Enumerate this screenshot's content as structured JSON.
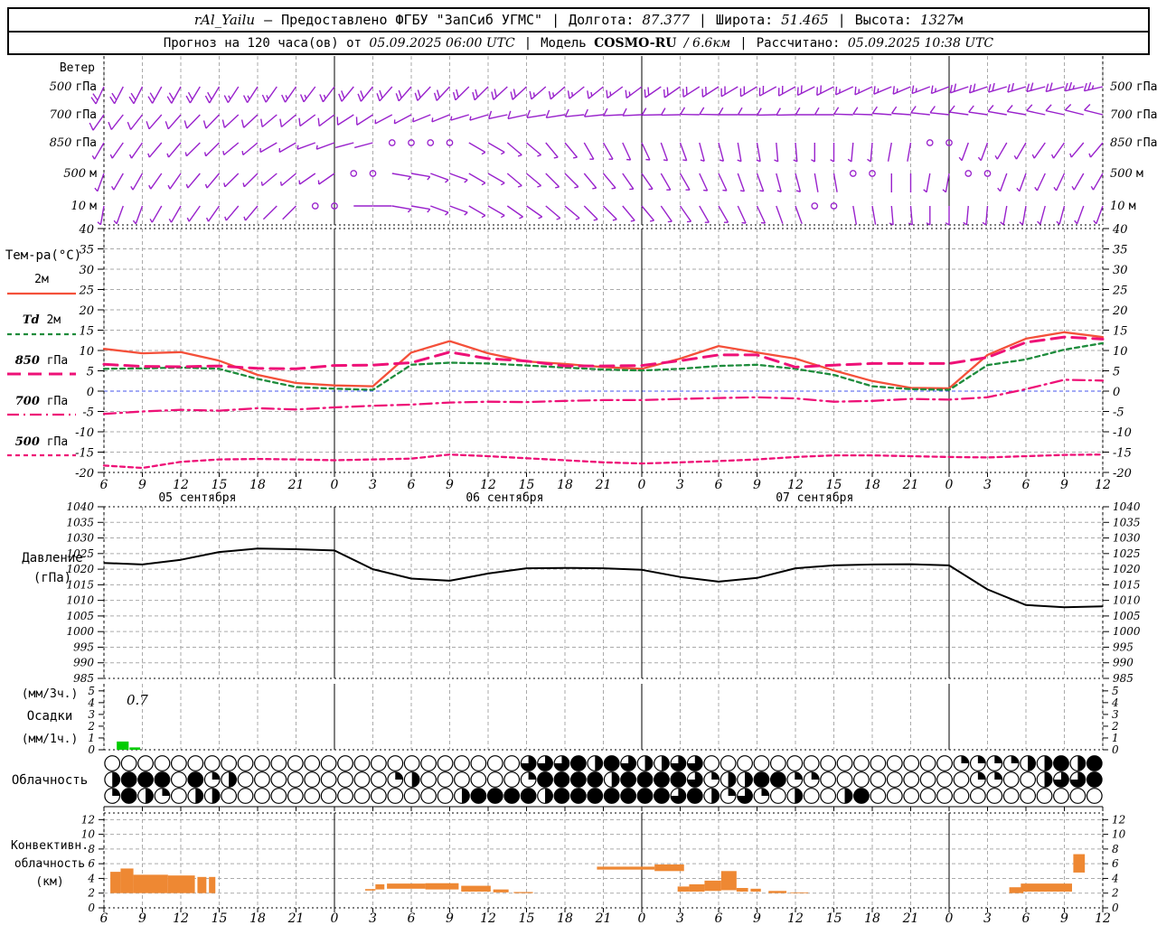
{
  "header": {
    "station": "rAl_Yailu",
    "dash": "—",
    "provider": "Предоставлено ФГБУ \"ЗапСиб УГМС\"",
    "lon_label": "Долгота:",
    "lon": "87.377",
    "lat_label": "Широта:",
    "lat": "51.465",
    "alt_label": "Высота:",
    "alt": "1327",
    "alt_unit": "м",
    "forecast_label": "Прогноз на 120 часа(ов) от",
    "run_time": "05.09.2025 06:00 UTC",
    "model_label": "Модель",
    "model": "COSMO-RU",
    "model_res": "/ 6.6км",
    "calc_label": "Рассчитано:",
    "calc_time": "05.09.2025 10:38 UTC",
    "sep": "|"
  },
  "axis": {
    "hour_labels": [
      "6",
      "9",
      "12",
      "15",
      "18",
      "21",
      "0",
      "3",
      "6",
      "9",
      "12",
      "15",
      "18",
      "21",
      "0",
      "3",
      "6",
      "9",
      "12",
      "15",
      "18",
      "21",
      "0",
      "3",
      "6",
      "9",
      "12"
    ],
    "day_tick_indices": [
      6,
      14,
      22
    ],
    "date_labels": [
      "05 сентября",
      "06 сентября",
      "07 сентября"
    ],
    "date_centers_h": [
      7.3,
      31.3,
      55.5
    ]
  },
  "colors": {
    "barb": "#9922CC",
    "t2m": "#F4503A",
    "td2m": "#1E8C3C",
    "pink": "#EE1177",
    "zero_line": "#4455EE",
    "pressure": "#000000",
    "precip_bar": "#00CC00",
    "conv_bar": "#EE8833",
    "grid": "#AAAAAA"
  },
  "chart_data": [
    {
      "type": "wind-barbs",
      "title": "Ветер",
      "x_hours_step": 3,
      "levels": [
        {
          "label_num": "500",
          "label_unit": "гПа",
          "dirs": [
            205,
            207,
            209,
            211,
            213,
            215,
            217,
            219,
            221,
            223,
            225,
            227,
            229,
            231,
            233,
            235,
            237,
            239,
            241,
            243,
            245,
            247,
            249,
            251,
            253,
            255,
            257
          ],
          "kts": [
            20,
            20,
            18,
            18,
            15,
            15,
            15,
            18,
            20,
            20,
            20,
            18,
            15,
            15,
            15,
            18,
            18,
            20,
            20,
            18,
            15,
            15,
            15,
            18,
            20,
            22,
            25
          ]
        },
        {
          "label_num": "700",
          "label_unit": "гПа",
          "dirs": [
            215,
            218,
            221,
            224,
            227,
            230,
            233,
            237,
            242,
            248,
            253,
            258,
            261,
            264,
            267,
            269,
            271,
            270,
            269,
            270,
            272,
            274,
            276,
            278,
            280,
            282,
            284
          ],
          "kts": [
            10,
            10,
            8,
            8,
            8,
            10,
            10,
            8,
            5,
            5,
            5,
            8,
            8,
            10,
            10,
            10,
            8,
            8,
            8,
            10,
            10,
            10,
            8,
            8,
            10,
            12,
            12
          ]
        },
        {
          "label_num": "850",
          "label_unit": "гПа",
          "dirs": [
            210,
            215,
            220,
            225,
            230,
            240,
            250,
            255,
            0,
            0,
            120,
            130,
            140,
            150,
            155,
            160,
            165,
            170,
            175,
            180,
            185,
            190,
            0,
            200,
            210,
            215,
            220
          ],
          "kts": [
            5,
            5,
            5,
            5,
            5,
            3,
            3,
            2,
            0,
            0,
            3,
            4,
            5,
            5,
            5,
            5,
            5,
            5,
            4,
            4,
            3,
            2,
            0,
            3,
            5,
            5,
            5
          ]
        },
        {
          "label_num": "500",
          "label_unit": "м",
          "dirs": [
            200,
            210,
            215,
            220,
            225,
            230,
            235,
            0,
            100,
            110,
            120,
            130,
            135,
            140,
            145,
            150,
            155,
            160,
            165,
            170,
            0,
            180,
            190,
            0,
            200,
            205,
            210
          ],
          "kts": [
            4,
            5,
            5,
            5,
            4,
            3,
            3,
            0,
            3,
            4,
            5,
            5,
            5,
            5,
            4,
            4,
            4,
            3,
            3,
            2,
            0,
            2,
            3,
            0,
            4,
            5,
            5
          ]
        },
        {
          "label_num": "10",
          "label_unit": "м",
          "dirs": [
            190,
            200,
            210,
            215,
            220,
            225,
            0,
            90,
            100,
            110,
            120,
            125,
            130,
            135,
            140,
            145,
            150,
            155,
            160,
            0,
            170,
            175,
            180,
            185,
            190,
            195,
            200
          ],
          "kts": [
            3,
            4,
            4,
            4,
            3,
            2,
            0,
            2,
            3,
            4,
            5,
            5,
            5,
            4,
            4,
            3,
            3,
            3,
            2,
            0,
            2,
            3,
            3,
            3,
            4,
            4,
            4
          ]
        }
      ]
    },
    {
      "type": "line",
      "title": "Тем-ра(°C)",
      "ylim": [
        -20,
        40
      ],
      "yticks": [
        40,
        35,
        30,
        25,
        20,
        15,
        10,
        5,
        0,
        -5,
        -10,
        -15,
        -20
      ],
      "x_hours_step": 3,
      "series": [
        {
          "name": "2м",
          "style": "solid",
          "color": "#F4503A",
          "values": [
            10.4,
            9.3,
            9.6,
            7.5,
            4.0,
            2.0,
            1.4,
            1.2,
            9.5,
            12.3,
            9.3,
            7.3,
            6.7,
            5.9,
            5.5,
            8.0,
            11.1,
            9.5,
            8.0,
            5.1,
            2.5,
            0.8,
            0.7,
            8.9,
            12.9,
            14.5,
            13.3
          ]
        },
        {
          "name": "Td 2м",
          "style": "dashed",
          "color": "#1E8C3C",
          "values": [
            5.5,
            5.6,
            5.8,
            5.5,
            3.0,
            1.0,
            0.6,
            0.3,
            6.5,
            7.0,
            6.8,
            6.3,
            5.8,
            5.3,
            5.1,
            5.5,
            6.2,
            6.5,
            5.5,
            4.0,
            1.2,
            0.5,
            0.3,
            6.4,
            7.8,
            10.2,
            11.8
          ]
        },
        {
          "name": "850 гПа",
          "style": "longdash",
          "color": "#EE1177",
          "values": [
            6.6,
            6.1,
            6.0,
            6.2,
            5.6,
            5.5,
            6.3,
            6.4,
            7.0,
            9.6,
            8.0,
            7.4,
            6.2,
            6.2,
            6.3,
            7.5,
            8.9,
            8.9,
            5.9,
            6.4,
            6.8,
            6.8,
            6.8,
            8.3,
            12.0,
            13.3,
            12.8
          ]
        },
        {
          "name": "700 гПа",
          "style": "dashdot",
          "color": "#EE1177",
          "values": [
            -5.6,
            -5.0,
            -4.6,
            -4.8,
            -4.2,
            -4.5,
            -4.0,
            -3.6,
            -3.3,
            -2.8,
            -2.6,
            -2.7,
            -2.4,
            -2.2,
            -2.2,
            -1.9,
            -1.7,
            -1.5,
            -1.8,
            -2.6,
            -2.4,
            -1.9,
            -2.1,
            -1.5,
            0.5,
            2.8,
            2.6
          ]
        },
        {
          "name": "500 гПа",
          "style": "shortdash",
          "color": "#EE1177",
          "values": [
            -18.3,
            -18.9,
            -17.4,
            -16.8,
            -16.7,
            -16.8,
            -17.0,
            -16.8,
            -16.6,
            -15.6,
            -16.0,
            -16.5,
            -17.0,
            -17.5,
            -17.8,
            -17.5,
            -17.2,
            -16.8,
            -16.2,
            -15.8,
            -15.8,
            -16.0,
            -16.2,
            -16.3,
            -16.0,
            -15.7,
            -15.6
          ]
        }
      ]
    },
    {
      "type": "line",
      "title": "Давление (гПа)",
      "label_line1": "Давление",
      "label_line2": "(гПа)",
      "ylim": [
        985,
        1040
      ],
      "yticks": [
        1040,
        1035,
        1030,
        1025,
        1020,
        1015,
        1010,
        1005,
        1000,
        995,
        990,
        985
      ],
      "x_hours_step": 3,
      "values": [
        1022.0,
        1021.5,
        1023.0,
        1025.5,
        1026.6,
        1026.4,
        1026.0,
        1020.0,
        1017.0,
        1016.3,
        1018.6,
        1020.3,
        1020.4,
        1020.3,
        1019.8,
        1017.5,
        1016.0,
        1017.2,
        1020.3,
        1021.2,
        1021.5,
        1021.6,
        1021.2,
        1013.5,
        1008.5,
        1007.8,
        1008.1
      ]
    },
    {
      "type": "bar",
      "title": "Осадки",
      "label_line1": "(мм/3ч.)",
      "label_line2": "Осадки",
      "label_line3": "(мм/1ч.)",
      "ylim": [
        0,
        5.6
      ],
      "yticks": [
        5,
        4,
        3,
        2,
        1,
        0
      ],
      "max_label": "0.7",
      "bars": [
        {
          "h0": 1.0,
          "h1": 2.0,
          "value": 0.7
        },
        {
          "h0": 2.0,
          "h1": 2.9,
          "value": 0.2
        }
      ]
    },
    {
      "type": "cloud-cover",
      "title": "Облачность",
      "rows_quarters": [
        [
          0,
          0,
          0,
          0,
          0,
          0,
          0,
          0,
          0,
          0,
          0,
          0,
          0,
          0,
          0,
          0,
          0,
          0,
          0,
          0,
          0,
          0,
          0,
          0,
          0,
          3,
          3,
          3,
          4,
          2,
          4,
          3,
          2,
          2,
          3,
          3,
          0,
          0,
          0,
          0,
          0,
          0,
          0,
          0,
          0,
          0,
          0,
          0,
          0,
          0,
          0,
          1,
          1,
          1,
          1,
          2,
          2,
          4,
          2,
          4
        ],
        [
          2,
          4,
          4,
          4,
          0,
          4,
          1,
          2,
          0,
          0,
          0,
          0,
          0,
          0,
          0,
          0,
          0,
          1,
          2,
          0,
          0,
          0,
          0,
          0,
          0,
          1,
          4,
          4,
          4,
          4,
          2,
          4,
          4,
          4,
          4,
          3,
          1,
          2,
          2,
          4,
          4,
          1,
          1,
          0,
          0,
          0,
          0,
          0,
          0,
          0,
          0,
          0,
          1,
          1,
          0,
          0,
          2,
          3,
          3,
          4
        ],
        [
          1,
          4,
          2,
          1,
          0,
          2,
          2,
          0,
          0,
          0,
          0,
          0,
          0,
          0,
          0,
          0,
          0,
          0,
          0,
          0,
          0,
          2,
          4,
          4,
          4,
          4,
          2,
          4,
          4,
          4,
          4,
          4,
          4,
          4,
          3,
          4,
          2,
          1,
          3,
          1,
          0,
          2,
          0,
          0,
          2,
          4,
          0,
          0,
          0,
          0,
          0,
          0,
          0,
          0,
          0,
          0,
          0,
          0,
          0,
          0
        ]
      ]
    },
    {
      "type": "bar",
      "title": "Конвективная облачность",
      "label_line1": "Конвективн.",
      "label_line2": "облачность",
      "label_line3": "(км)",
      "ylim": [
        0,
        12.9
      ],
      "yticks": [
        12,
        10,
        8,
        6,
        4,
        2,
        0
      ],
      "bars_km": [
        [
          0.5,
          1.3,
          2.0,
          4.9
        ],
        [
          1.3,
          2.3,
          2.0,
          5.35
        ],
        [
          2.3,
          5.0,
          2.0,
          4.5
        ],
        [
          5.0,
          7.1,
          2.0,
          4.4
        ],
        [
          7.3,
          8.0,
          2.0,
          4.2
        ],
        [
          8.2,
          8.7,
          2.0,
          4.2
        ],
        [
          20.4,
          21.2,
          2.35,
          2.55
        ],
        [
          21.2,
          21.9,
          2.5,
          3.2
        ],
        [
          22.1,
          25.1,
          2.6,
          3.3
        ],
        [
          25.1,
          27.7,
          2.5,
          3.35
        ],
        [
          27.9,
          30.2,
          2.2,
          3.0
        ],
        [
          30.4,
          31.6,
          2.1,
          2.5
        ],
        [
          32.0,
          33.5,
          2.0,
          2.15
        ],
        [
          38.5,
          43.0,
          5.2,
          5.6
        ],
        [
          43.0,
          45.3,
          5.0,
          5.9
        ],
        [
          44.8,
          45.7,
          2.2,
          2.9
        ],
        [
          45.7,
          46.9,
          2.2,
          3.2
        ],
        [
          46.9,
          48.2,
          2.3,
          3.7
        ],
        [
          48.2,
          49.4,
          2.4,
          5.0
        ],
        [
          49.4,
          50.3,
          2.2,
          2.7
        ],
        [
          50.5,
          51.3,
          2.2,
          2.6
        ],
        [
          51.9,
          53.3,
          2.0,
          2.3
        ],
        [
          53.6,
          55.0,
          2.0,
          2.1
        ],
        [
          70.7,
          71.8,
          2.0,
          2.8
        ],
        [
          71.6,
          75.6,
          2.2,
          3.3
        ],
        [
          75.7,
          76.6,
          4.8,
          7.3
        ]
      ]
    }
  ],
  "legend": {
    "temp_items": [
      {
        "pre": "",
        "it": "",
        "post": "2м",
        "style": "solid",
        "color": "#F4503A"
      },
      {
        "pre": "",
        "it": "Td",
        "post": " 2м",
        "style": "dashed",
        "color": "#1E8C3C"
      },
      {
        "pre": "",
        "it": "850",
        "post": " гПа",
        "style": "longdash",
        "color": "#EE1177"
      },
      {
        "pre": "",
        "it": "700",
        "post": " гПа",
        "style": "dashdot",
        "color": "#EE1177"
      },
      {
        "pre": "",
        "it": "500",
        "post": " гПа",
        "style": "shortdash",
        "color": "#EE1177"
      }
    ],
    "wind_title": "Ветер"
  }
}
